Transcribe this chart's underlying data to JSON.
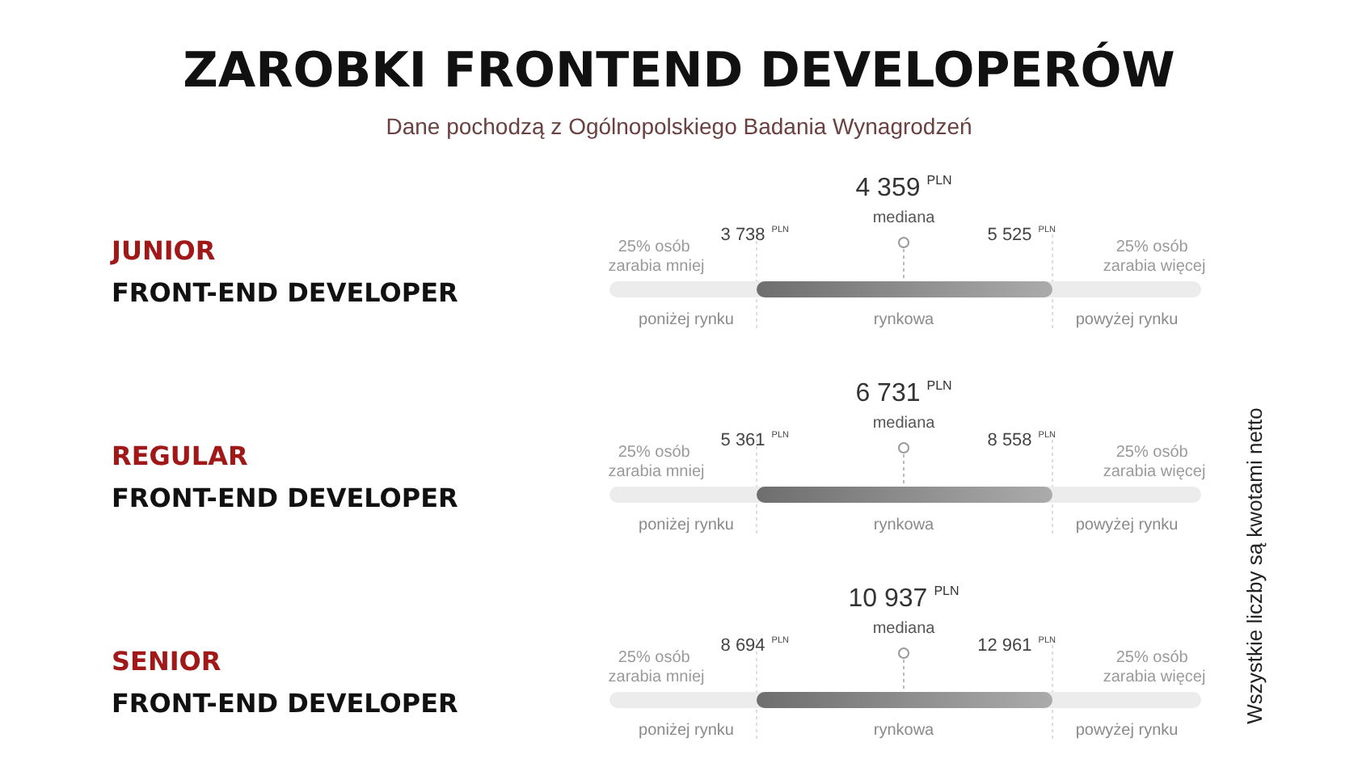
{
  "chart_data": {
    "type": "other",
    "title": "ZAROBKI FRONTEND DEVELOPERÓW",
    "subtitle": "Dane pochodzą z Ogólnopolskiego Badania Wynagrodzeń",
    "categories": [
      "JUNIOR\nFRONT-END DEVELOPER",
      "REGULAR\nFRONT-END DEVELOPER",
      "SENIOR\nFRONT-END DEVELOPER"
    ],
    "series": [
      {
        "name": "25% osób zarabia mniej",
        "values": [
          3738,
          5361,
          8694
        ],
        "value_labels": [
          "3 738$^{PLN}$",
          "5 361$^{PLN}$",
          "8 694$^{PLN}$"
        ]
      },
      {
        "name": "mediana",
        "values": [
          4359,
          6731,
          10937
        ],
        "value_labels": [
          "4 359$^{PLN}$",
          "6 731$^{PLN}$",
          "10 937$^{PLN}$"
        ]
      },
      {
        "name": "25% osób zarabia więcej",
        "values": [
          5525,
          8558,
          12961
        ],
        "value_labels": [
          "5 525$^{PLN}$",
          "8 558$^{PLN}$",
          "12 961$^{PLN}$"
        ]
      }
    ],
    "annotations": [
      "poniżej rynku",
      "rynkowa",
      "powyżej rynku",
      "Wszystkie liczby są kwotami netto"
    ]
  }
}
